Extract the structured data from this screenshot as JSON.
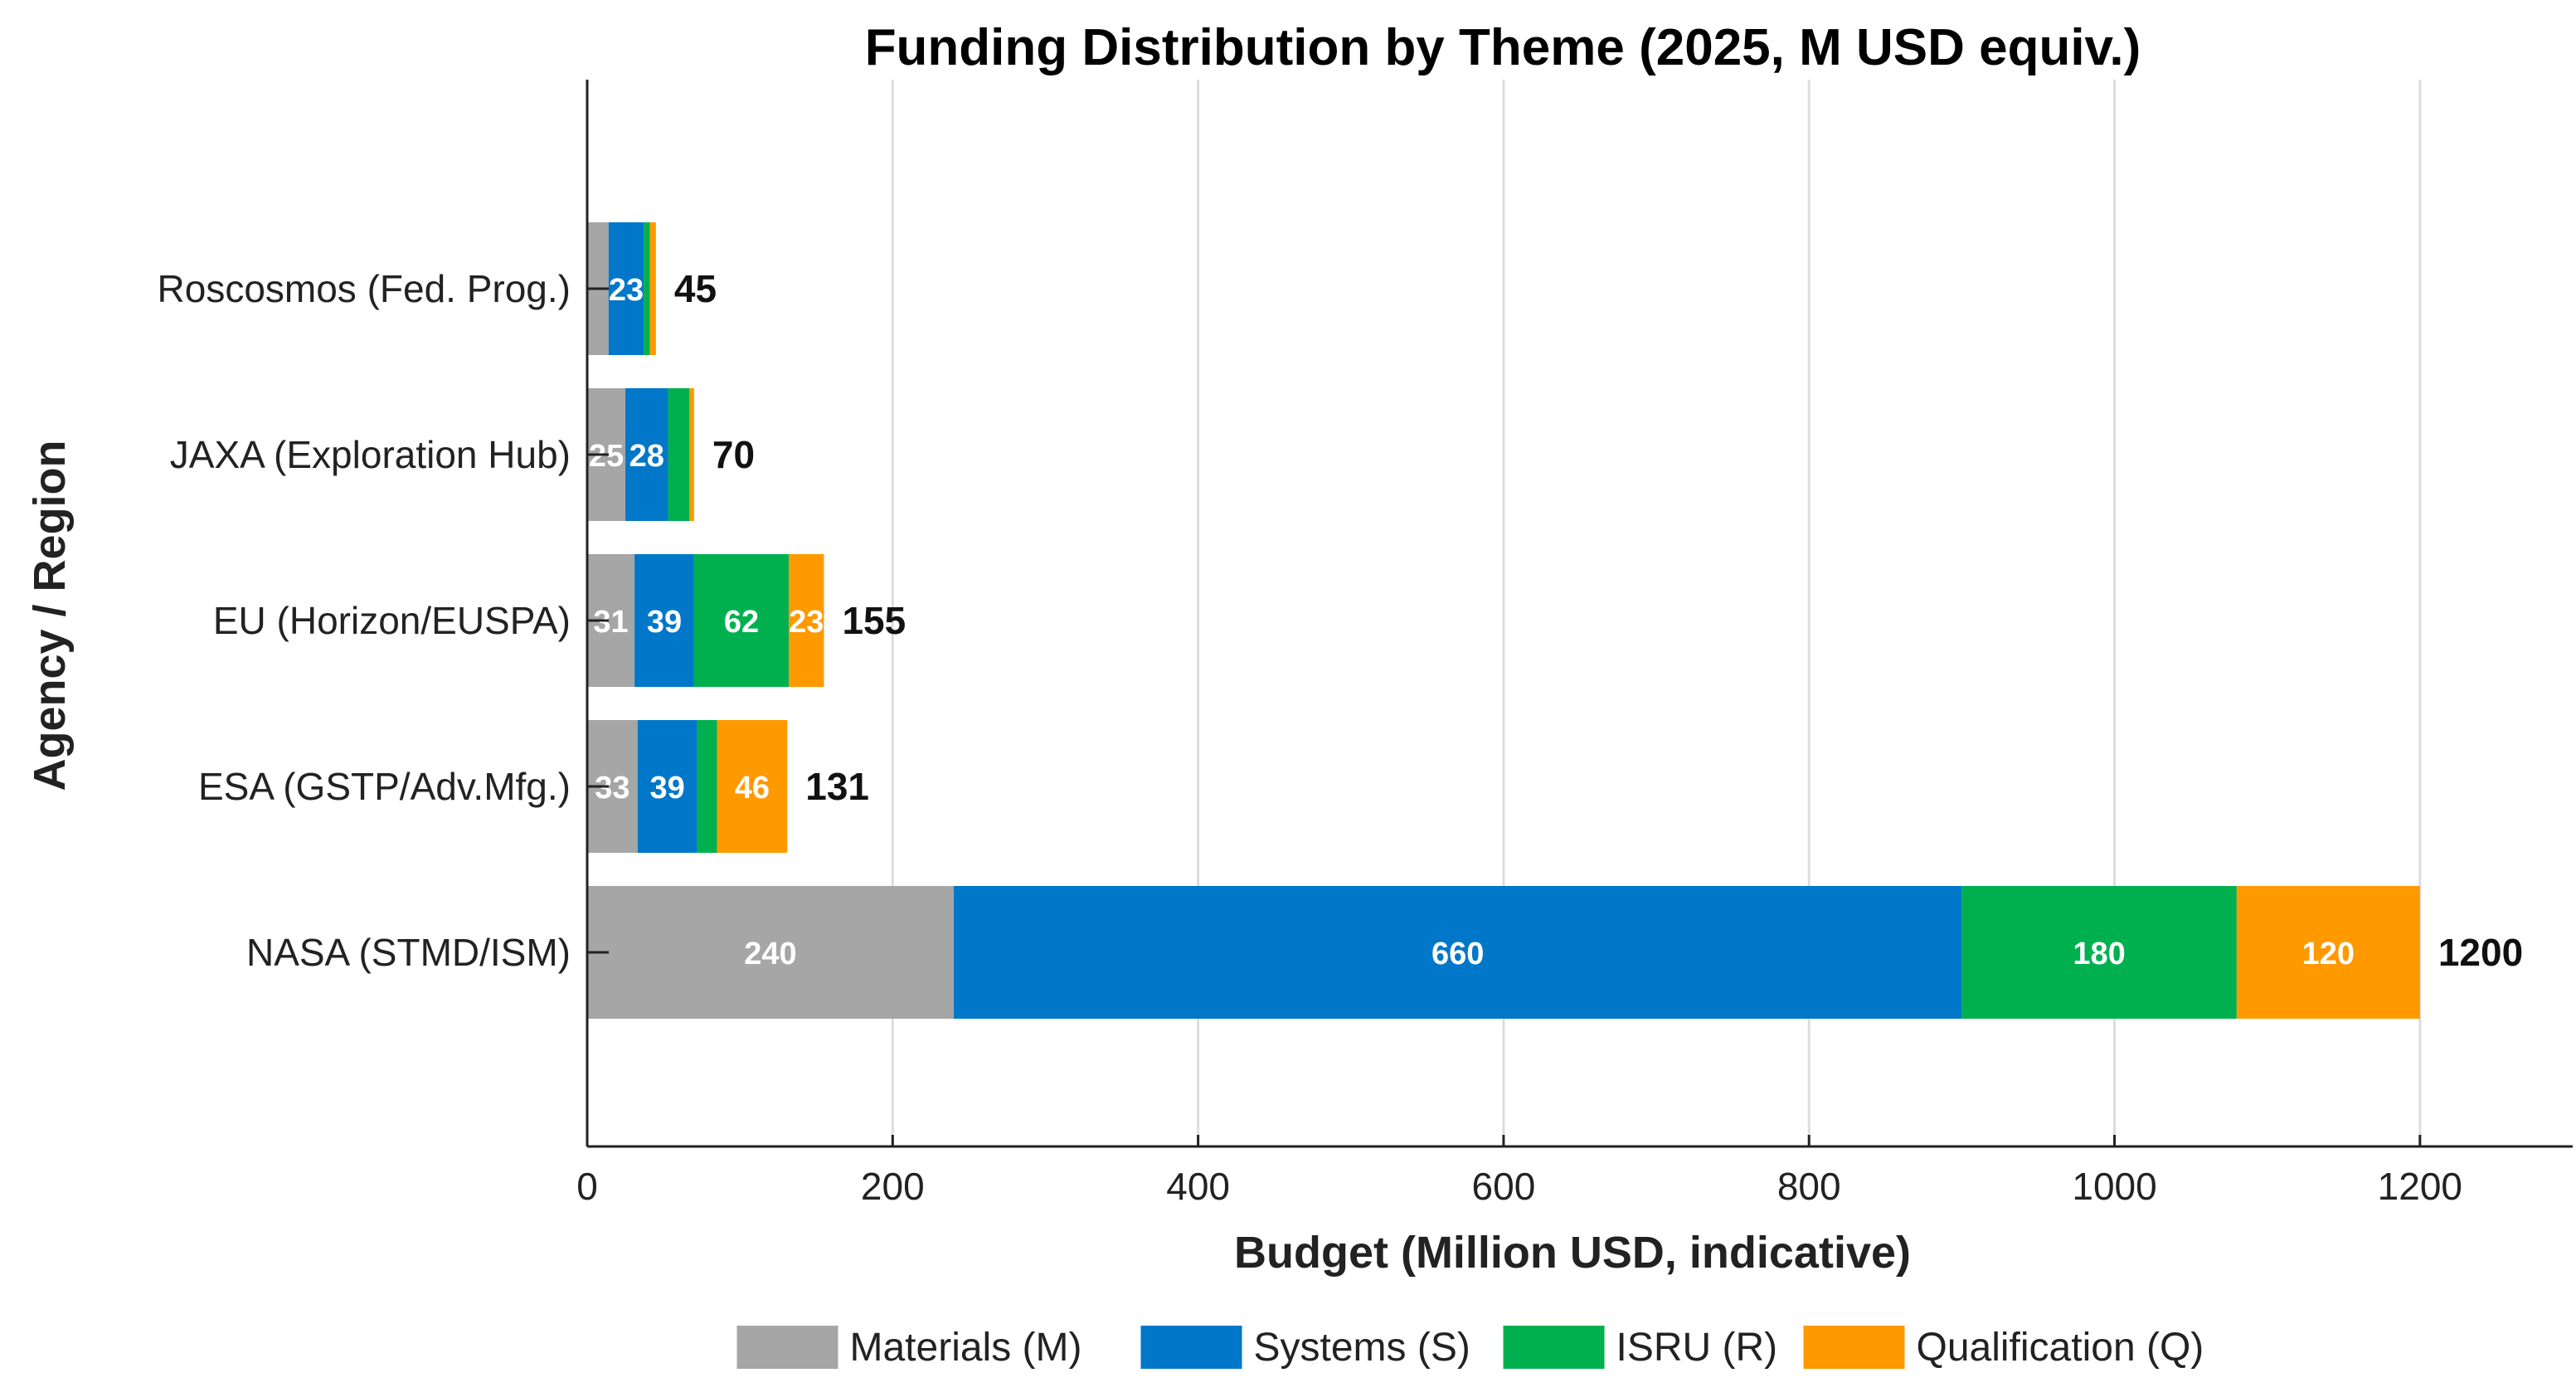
{
  "chart_data": {
    "type": "bar",
    "orientation": "horizontal",
    "stacked": true,
    "title": "Funding Distribution by Theme (2025, M USD equiv.)",
    "xlabel": "Budget (Million USD, indicative)",
    "ylabel": "Agency / Region",
    "xlim": [
      0,
      1300
    ],
    "xticks": [
      0,
      200,
      400,
      600,
      800,
      1000,
      1200
    ],
    "grid": "vertical",
    "legend": "bottom",
    "categories": [
      "NASA (STMD/ISM)",
      "ESA (GSTP/Adv.Mfg.)",
      "EU (Horizon/EUSPA)",
      "JAXA (Exploration Hub)",
      "Roscosmos (Fed. Prog.)"
    ],
    "series": [
      {
        "name": "Materials (M)",
        "color": "#a6a6a6",
        "values": [
          240,
          33,
          31,
          25,
          14
        ]
      },
      {
        "name": "Systems (S)",
        "color": "#0077c8",
        "values": [
          660,
          39,
          39,
          28,
          23
        ]
      },
      {
        "name": "ISRU (R)",
        "color": "#00b04f",
        "values": [
          180,
          13,
          62,
          14,
          4
        ]
      },
      {
        "name": "Qualification (Q)",
        "color": "#ff9900",
        "values": [
          120,
          46,
          23,
          3,
          4
        ]
      }
    ],
    "totals": [
      1200,
      131,
      155,
      70,
      45
    ]
  }
}
